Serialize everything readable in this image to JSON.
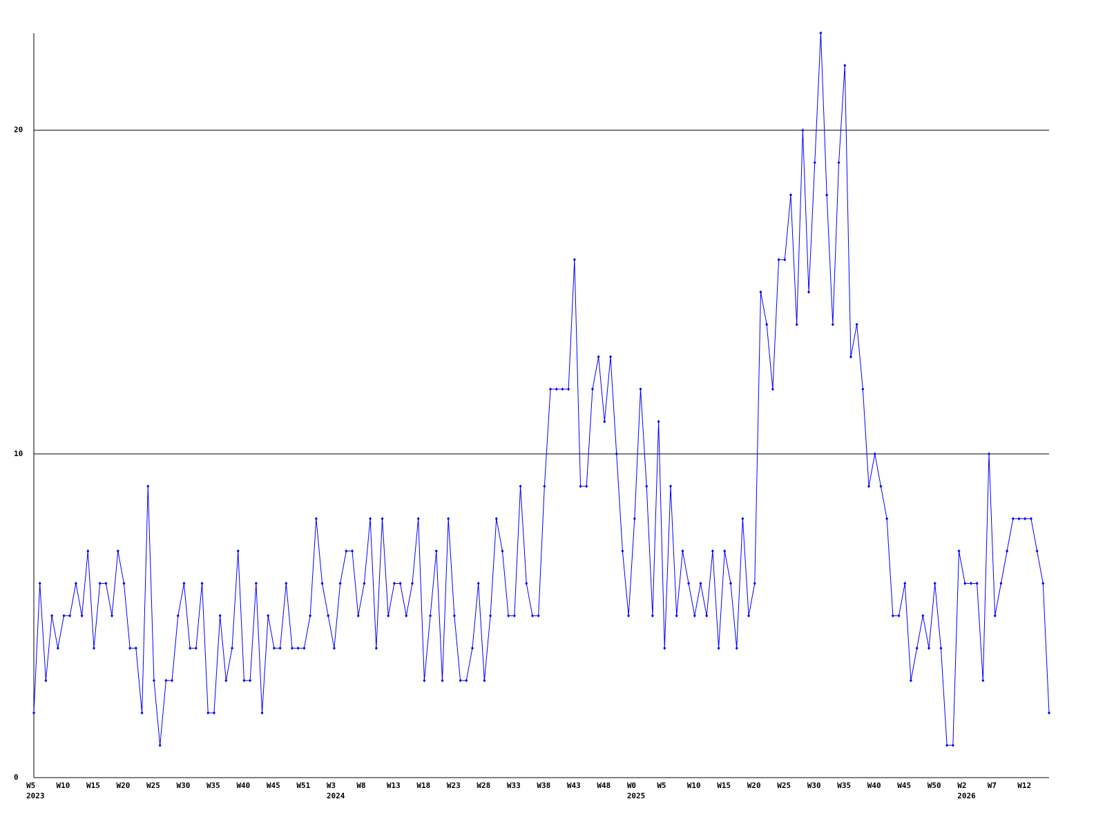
{
  "chart_data": {
    "type": "line",
    "categories": [
      "W5",
      null,
      null,
      null,
      null,
      "W10",
      null,
      null,
      null,
      null,
      "W15",
      null,
      null,
      null,
      null,
      "W20",
      null,
      null,
      null,
      null,
      "W25",
      null,
      null,
      null,
      null,
      "W30",
      null,
      null,
      null,
      null,
      "W35",
      null,
      null,
      null,
      null,
      "W40",
      null,
      null,
      null,
      null,
      "W45",
      null,
      null,
      null,
      null,
      "W51",
      null,
      null,
      null,
      null,
      "W3",
      null,
      null,
      null,
      null,
      "W8",
      null,
      null,
      null,
      null,
      "W13",
      null,
      null,
      null,
      null,
      "W18",
      null,
      null,
      null,
      null,
      "W23",
      null,
      null,
      null,
      null,
      "W28",
      null,
      null,
      null,
      null,
      "W33",
      null,
      null,
      null,
      null,
      "W38",
      null,
      null,
      null,
      null,
      "W43",
      null,
      null,
      null,
      null,
      "W48",
      null,
      null,
      null,
      null,
      "W0",
      null,
      null,
      null,
      null,
      "W5",
      null,
      null,
      null,
      null,
      "W10",
      null,
      null,
      null,
      null,
      "W15",
      null,
      null,
      null,
      null,
      "W20",
      null,
      null,
      null,
      null,
      "W25",
      null,
      null,
      null,
      null,
      "W30",
      null,
      null,
      null,
      null,
      "W35",
      null,
      null,
      null,
      null,
      "W40",
      null,
      null,
      null,
      null,
      "W45",
      null,
      null,
      null,
      null,
      "W50",
      null,
      null,
      null,
      null,
      "W2",
      null,
      null,
      null,
      null,
      "W7",
      null,
      null,
      null,
      null,
      "W12",
      null,
      null,
      null,
      null
    ],
    "years": [
      "2023",
      null,
      null,
      null,
      null,
      null,
      null,
      null,
      null,
      null,
      null,
      null,
      null,
      null,
      null,
      null,
      null,
      null,
      null,
      null,
      null,
      null,
      null,
      null,
      null,
      null,
      null,
      null,
      null,
      null,
      null,
      null,
      null,
      null,
      null,
      null,
      null,
      null,
      null,
      null,
      null,
      null,
      null,
      null,
      null,
      null,
      null,
      null,
      null,
      null,
      "2024",
      null,
      null,
      null,
      null,
      null,
      null,
      null,
      null,
      null,
      null,
      null,
      null,
      null,
      null,
      null,
      null,
      null,
      null,
      null,
      null,
      null,
      null,
      null,
      null,
      null,
      null,
      null,
      null,
      null,
      null,
      null,
      null,
      null,
      null,
      null,
      null,
      null,
      null,
      null,
      null,
      null,
      null,
      null,
      null,
      null,
      null,
      null,
      null,
      null,
      "2025",
      null,
      null,
      null,
      null,
      null,
      null,
      null,
      null,
      null,
      null,
      null,
      null,
      null,
      null,
      null,
      null,
      null,
      null,
      null,
      null,
      null,
      null,
      null,
      null,
      null,
      null,
      null,
      null,
      null,
      null,
      null,
      null,
      null,
      null,
      null,
      null,
      null,
      null,
      null,
      null,
      null,
      null,
      null,
      null,
      null,
      null,
      null,
      null,
      null,
      null,
      null,
      null,
      null,
      null,
      "2026",
      null,
      null,
      null,
      null,
      null,
      null,
      null,
      null,
      null,
      null,
      null,
      null,
      null,
      null
    ],
    "values": [
      2,
      6,
      3,
      5,
      4,
      5,
      5,
      6,
      5,
      7,
      4,
      6,
      6,
      5,
      7,
      6,
      4,
      4,
      2,
      9,
      3,
      1,
      3,
      3,
      5,
      6,
      4,
      4,
      6,
      2,
      2,
      5,
      3,
      4,
      7,
      3,
      3,
      6,
      2,
      5,
      4,
      4,
      6,
      4,
      4,
      4,
      5,
      8,
      6,
      5,
      4,
      6,
      7,
      7,
      5,
      6,
      8,
      4,
      8,
      5,
      6,
      6,
      5,
      6,
      8,
      3,
      5,
      7,
      3,
      8,
      5,
      3,
      3,
      4,
      6,
      3,
      5,
      8,
      7,
      5,
      5,
      9,
      6,
      5,
      5,
      9,
      12,
      12,
      12,
      12,
      16,
      9,
      9,
      12,
      13,
      11,
      13,
      10,
      7,
      5,
      8,
      12,
      9,
      5,
      11,
      4,
      9,
      5,
      7,
      6,
      5,
      6,
      5,
      7,
      4,
      7,
      6,
      4,
      8,
      5,
      6,
      15,
      14,
      12,
      16,
      16,
      18,
      14,
      20,
      15,
      19,
      23,
      18,
      14,
      19,
      22,
      13,
      14,
      12,
      9,
      10,
      9,
      8,
      5,
      5,
      6,
      3,
      4,
      5,
      4,
      6,
      4,
      1,
      1,
      7,
      6,
      6,
      6,
      3,
      10,
      5,
      6,
      7,
      8,
      8,
      8,
      8,
      7,
      6,
      2
    ],
    "color": "#0000ff",
    "ylim": [
      0,
      23
    ],
    "yticks": [
      0,
      10,
      20
    ],
    "grid": true
  }
}
